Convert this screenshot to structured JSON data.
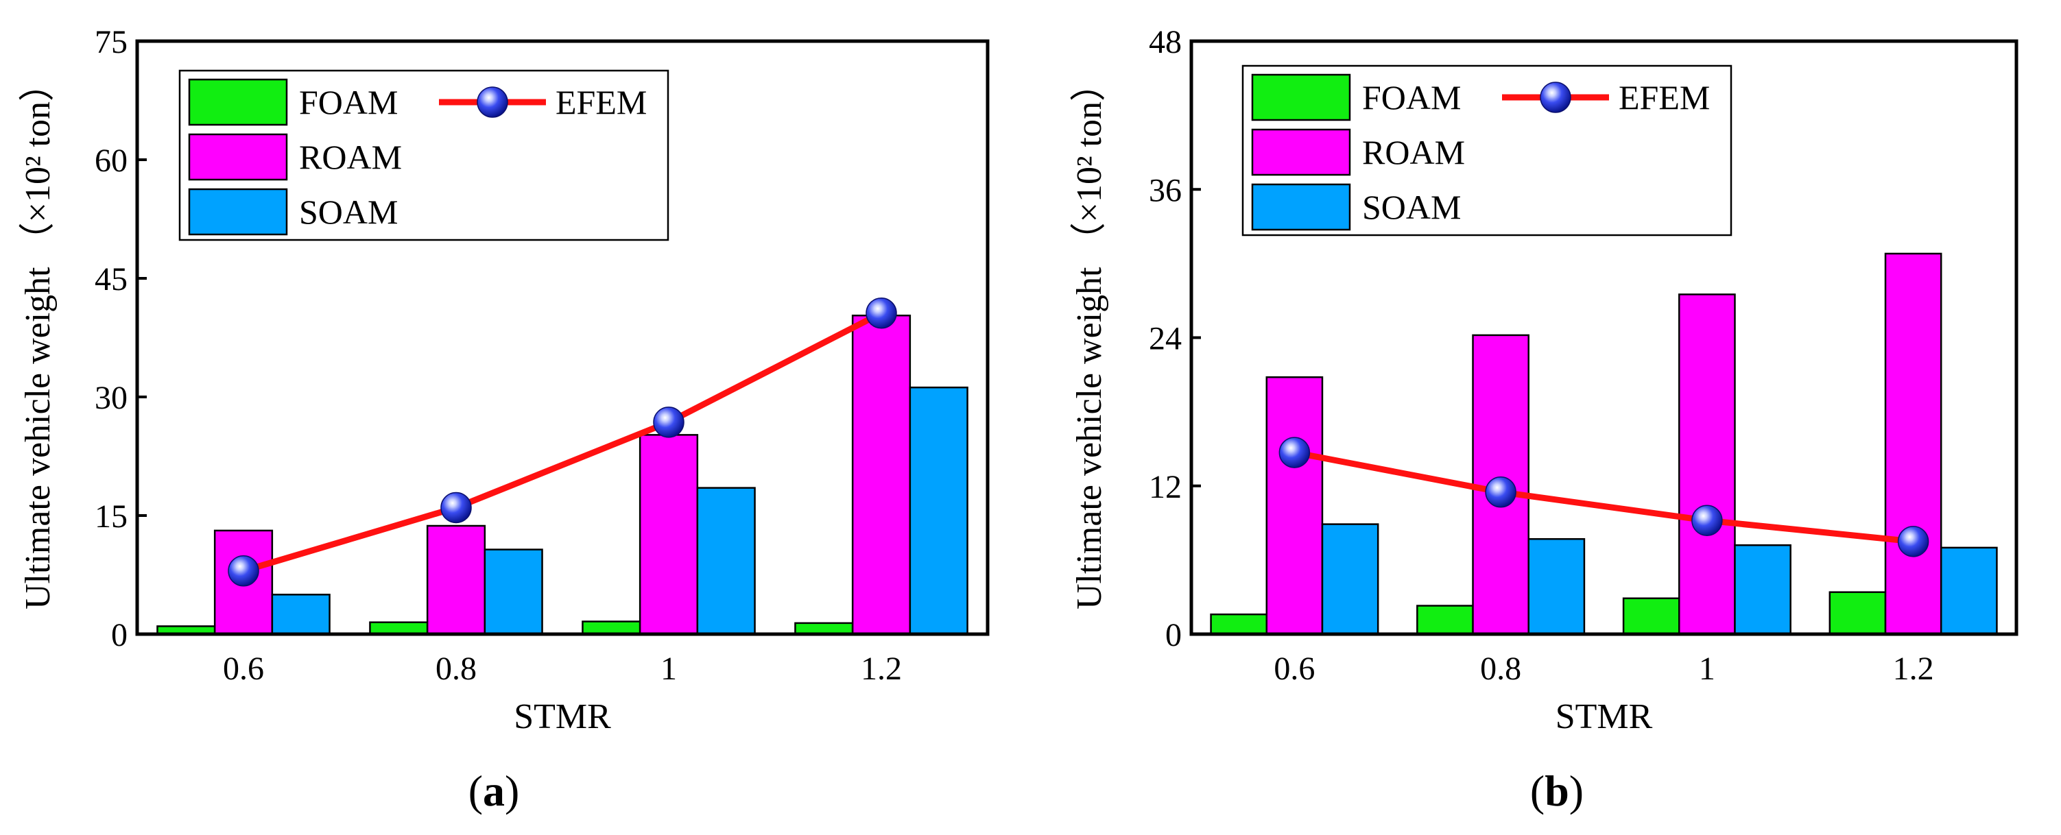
{
  "chart_data": [
    {
      "panel": "a",
      "panel_label": {
        "open": "(",
        "letter": "a",
        "close": ")"
      },
      "type": "bar",
      "xlabel": "STMR",
      "ylabel": "Ultimate vehicle weight",
      "ylabel_unit": "（×10² ton）",
      "categories": [
        "0.6",
        "0.8",
        "1",
        "1.2"
      ],
      "ylim": [
        0,
        75
      ],
      "yticks": [
        "0",
        "15",
        "30",
        "45",
        "60",
        "75"
      ],
      "series": [
        {
          "name": "FOAM",
          "kind": "bar",
          "color": "#11ee11",
          "values": [
            1.0,
            1.5,
            1.6,
            1.4
          ]
        },
        {
          "name": "ROAM",
          "kind": "bar",
          "color": "#ff00ff",
          "values": [
            13.1,
            13.7,
            25.2,
            40.3
          ]
        },
        {
          "name": "SOAM",
          "kind": "bar",
          "color": "#00a2ff",
          "values": [
            5.0,
            10.7,
            18.5,
            31.2
          ]
        },
        {
          "name": "EFEM",
          "kind": "line",
          "color": "#ff1111",
          "marker_color": "#2b3fe6",
          "values": [
            8.0,
            16.0,
            26.8,
            40.6
          ]
        }
      ],
      "legend": "top-left"
    },
    {
      "panel": "b",
      "panel_label": {
        "open": "(",
        "letter": "b",
        "close": ")"
      },
      "type": "bar",
      "xlabel": "STMR",
      "ylabel": "Ultimate vehicle weight",
      "ylabel_unit": "（×10² ton）",
      "categories": [
        "0.6",
        "0.8",
        "1",
        "1.2"
      ],
      "ylim": [
        0,
        48
      ],
      "yticks": [
        "0",
        "12",
        "24",
        "36",
        "48"
      ],
      "series": [
        {
          "name": "FOAM",
          "kind": "bar",
          "color": "#11ee11",
          "values": [
            1.6,
            2.3,
            2.9,
            3.4
          ]
        },
        {
          "name": "ROAM",
          "kind": "bar",
          "color": "#ff00ff",
          "values": [
            20.8,
            24.2,
            27.5,
            30.8
          ]
        },
        {
          "name": "SOAM",
          "kind": "bar",
          "color": "#00a2ff",
          "values": [
            8.9,
            7.7,
            7.2,
            7.0
          ]
        },
        {
          "name": "EFEM",
          "kind": "line",
          "color": "#ff1111",
          "marker_color": "#2b3fe6",
          "values": [
            14.7,
            11.5,
            9.2,
            7.5
          ]
        }
      ],
      "legend": "top-left"
    }
  ]
}
